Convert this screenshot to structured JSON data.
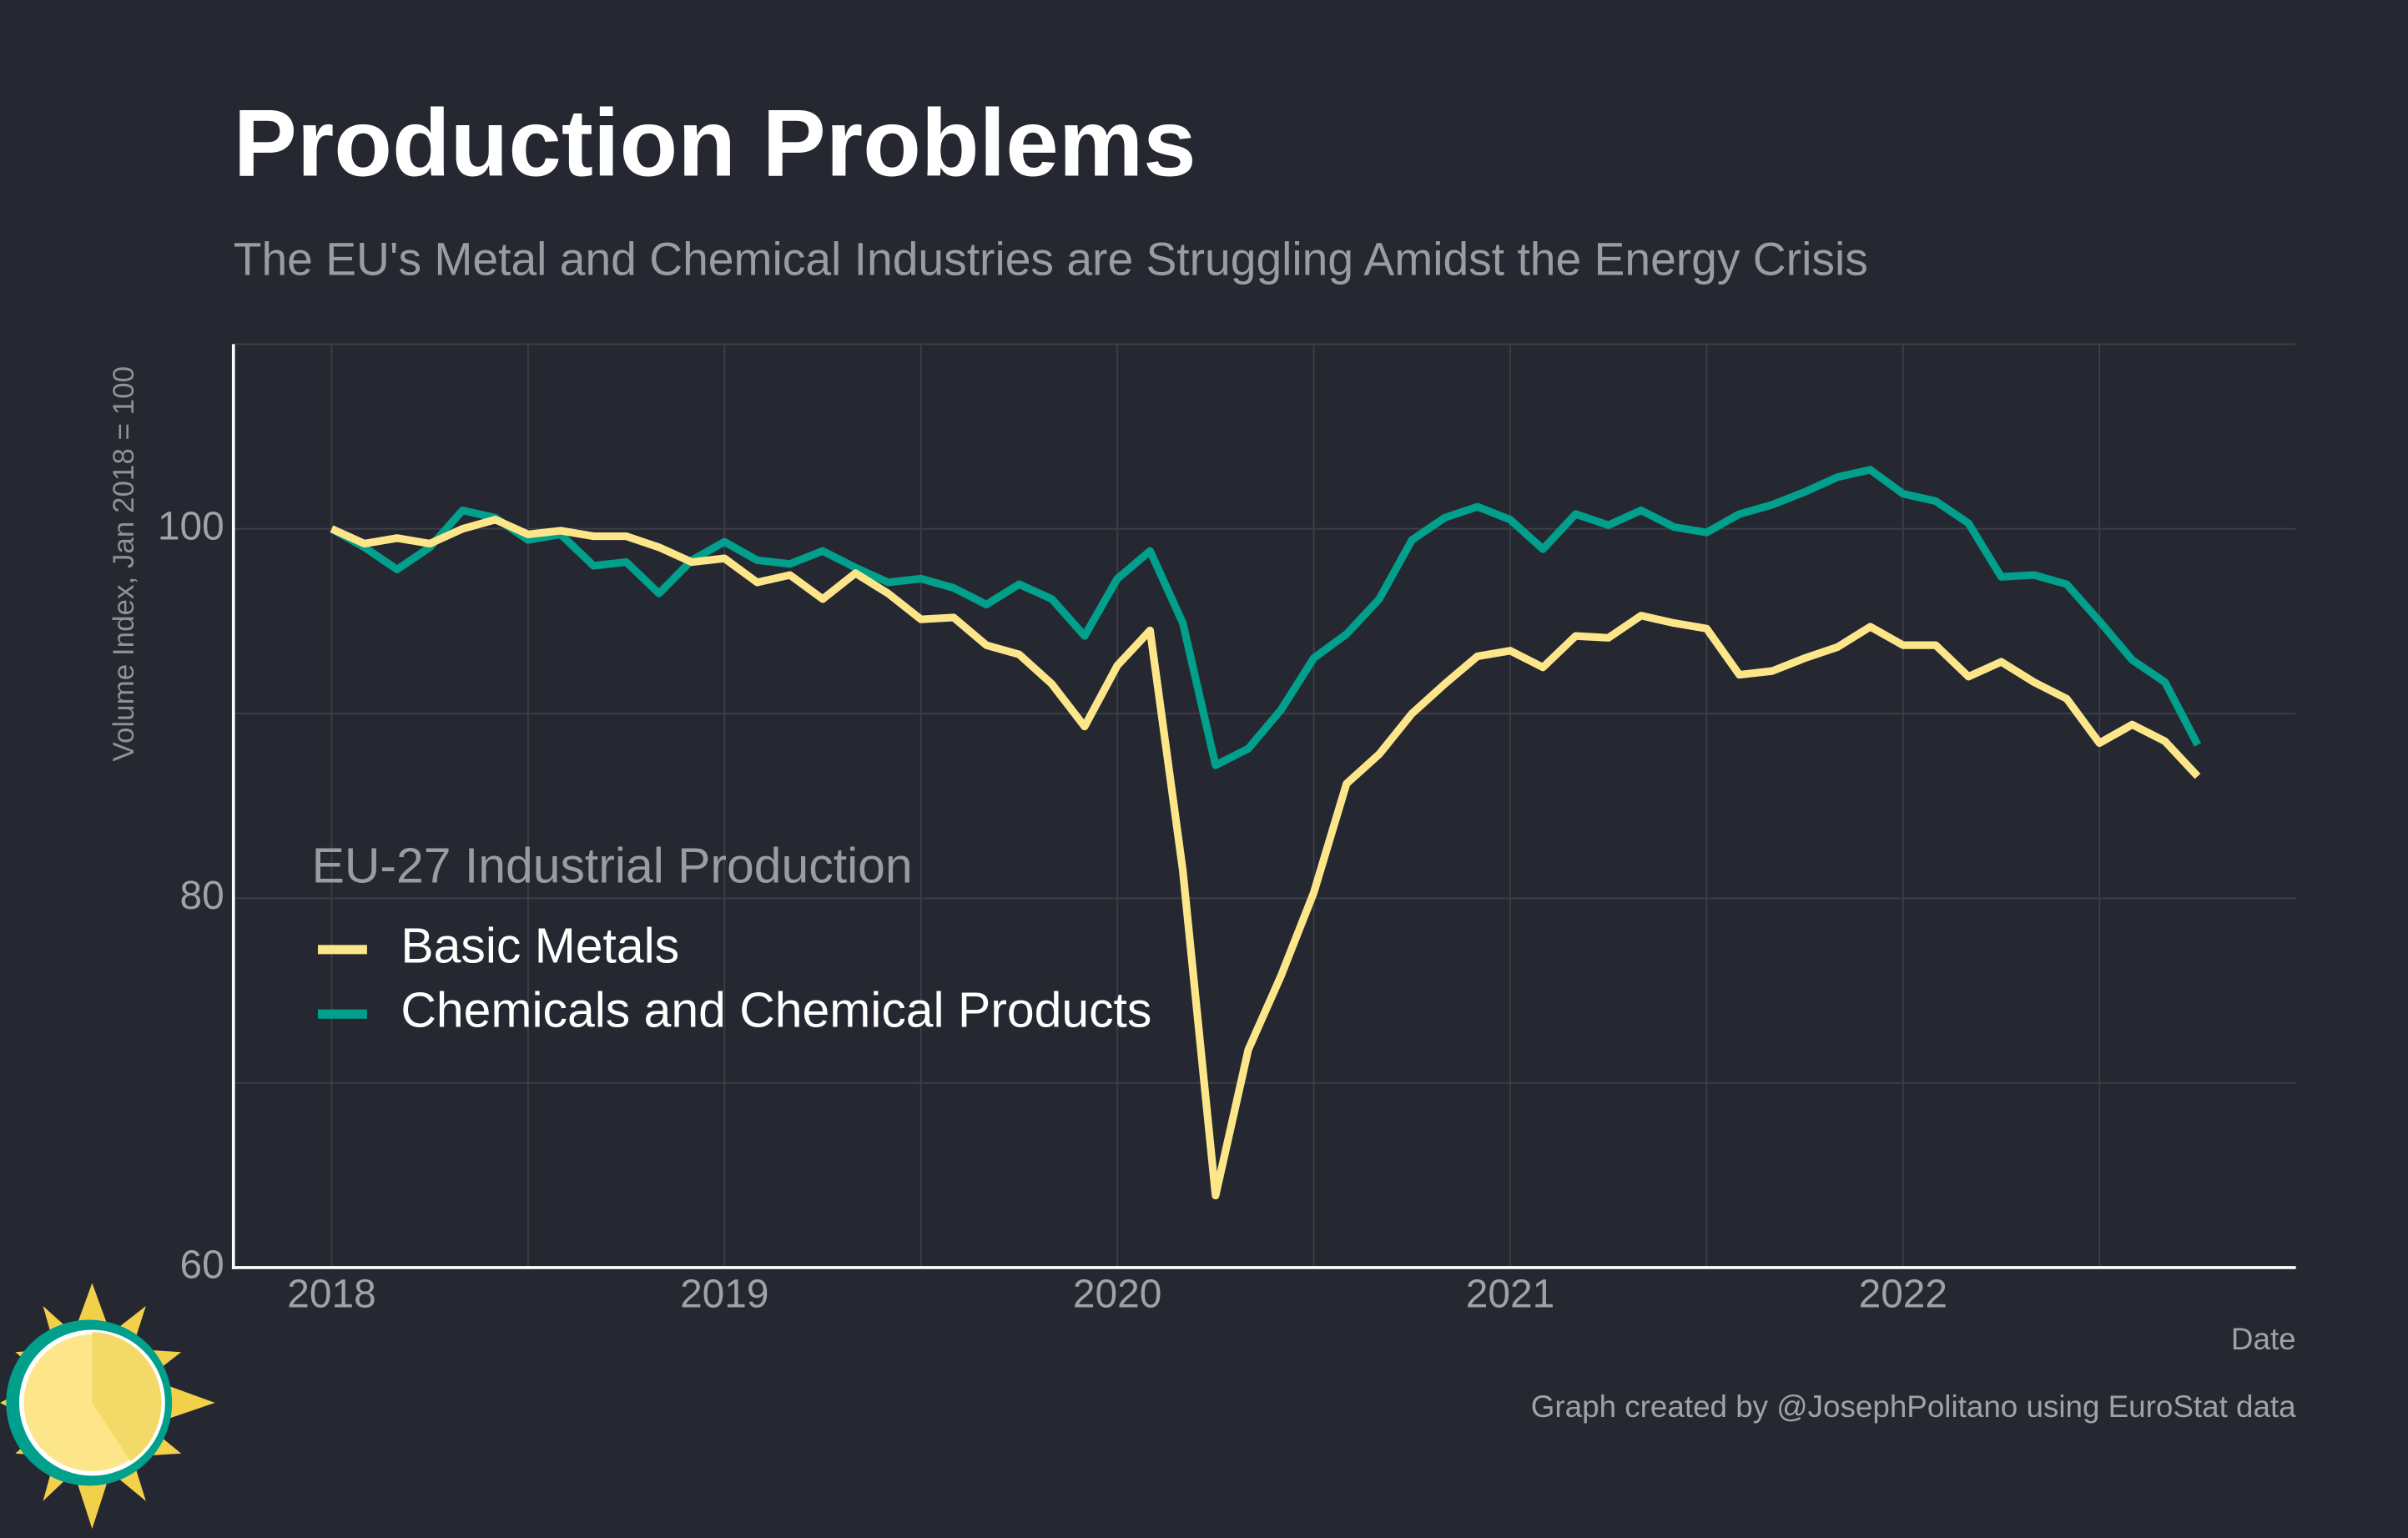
{
  "chart_data": {
    "type": "line",
    "title": "Production Problems",
    "subtitle": "The EU's Metal and Chemical Industries are Struggling Amidst the Energy Crisis",
    "y_label": "Volume Index, Jan 2018 = 100",
    "x_label": "Date",
    "caption": "Graph created by @JosephPolitano using EuroStat data",
    "legend_title": "EU-27 Industrial Production",
    "legend_position": "left",
    "grid": true,
    "x": [
      "2018-01",
      "2018-02",
      "2018-03",
      "2018-04",
      "2018-05",
      "2018-06",
      "2018-07",
      "2018-08",
      "2018-09",
      "2018-10",
      "2018-11",
      "2018-12",
      "2019-01",
      "2019-02",
      "2019-03",
      "2019-04",
      "2019-05",
      "2019-06",
      "2019-07",
      "2019-08",
      "2019-09",
      "2019-10",
      "2019-11",
      "2019-12",
      "2020-01",
      "2020-02",
      "2020-03",
      "2020-04",
      "2020-05",
      "2020-06",
      "2020-07",
      "2020-08",
      "2020-09",
      "2020-10",
      "2020-11",
      "2020-12",
      "2021-01",
      "2021-02",
      "2021-03",
      "2021-04",
      "2021-05",
      "2021-06",
      "2021-07",
      "2021-08",
      "2021-09",
      "2021-10",
      "2021-11",
      "2021-12",
      "2022-01",
      "2022-02",
      "2022-03",
      "2022-04",
      "2022-05",
      "2022-06",
      "2022-07",
      "2022-08",
      "2022-09",
      "2022-10"
    ],
    "series": [
      {
        "name": "Basic Metals",
        "color": "#fde68a",
        "values": [
          100,
          99.2,
          99.5,
          99.2,
          100,
          100.5,
          99.7,
          99.9,
          99.6,
          99.6,
          99,
          98.2,
          98.4,
          97.1,
          97.5,
          96.2,
          97.6,
          96.5,
          95.1,
          95.2,
          93.7,
          93.2,
          91.6,
          89.3,
          92.6,
          94.5,
          81.5,
          63.9,
          71.8,
          75.8,
          80.3,
          86.2,
          87.8,
          90,
          91.6,
          93.1,
          93.4,
          92.5,
          94.2,
          94.1,
          95.3,
          94.9,
          94.6,
          92.1,
          92.3,
          93,
          93.6,
          94.7,
          93.7,
          93.7,
          92,
          92.8,
          91.7,
          90.8,
          88.4,
          89.4,
          88.5,
          86.6
        ]
      },
      {
        "name": "Chemicals and Chemical Products",
        "color": "#00a08c",
        "values": [
          100,
          99,
          97.8,
          99,
          101,
          100.6,
          99.4,
          99.7,
          98,
          98.2,
          96.5,
          98.3,
          99.3,
          98.3,
          98.1,
          98.8,
          97.9,
          97.1,
          97.3,
          96.8,
          95.9,
          97,
          96.2,
          94.2,
          97.3,
          98.8,
          94.9,
          87.2,
          88.1,
          90.2,
          93,
          94.3,
          96.2,
          99.4,
          100.6,
          101.2,
          100.5,
          98.9,
          100.8,
          100.2,
          101,
          100.1,
          99.8,
          100.8,
          101.3,
          102,
          102.8,
          103.2,
          101.9,
          101.5,
          100.3,
          97.4,
          97.5,
          97,
          95,
          92.9,
          91.7,
          88.3
        ]
      }
    ],
    "xlim": [
      "2017-10",
      "2023-01"
    ],
    "xticks": [
      {
        "value": "2018-01",
        "label": "2018"
      },
      {
        "value": "2019-01",
        "label": "2019"
      },
      {
        "value": "2020-01",
        "label": "2020"
      },
      {
        "value": "2021-01",
        "label": "2021"
      },
      {
        "value": "2022-01",
        "label": "2022"
      }
    ],
    "x_minor_grid": [
      "2018-07",
      "2019-07",
      "2020-07",
      "2021-07",
      "2022-07"
    ],
    "ylim": [
      60,
      110
    ],
    "yticks": [
      60,
      80,
      100
    ],
    "y_minor_grid": [
      70,
      90
    ]
  }
}
